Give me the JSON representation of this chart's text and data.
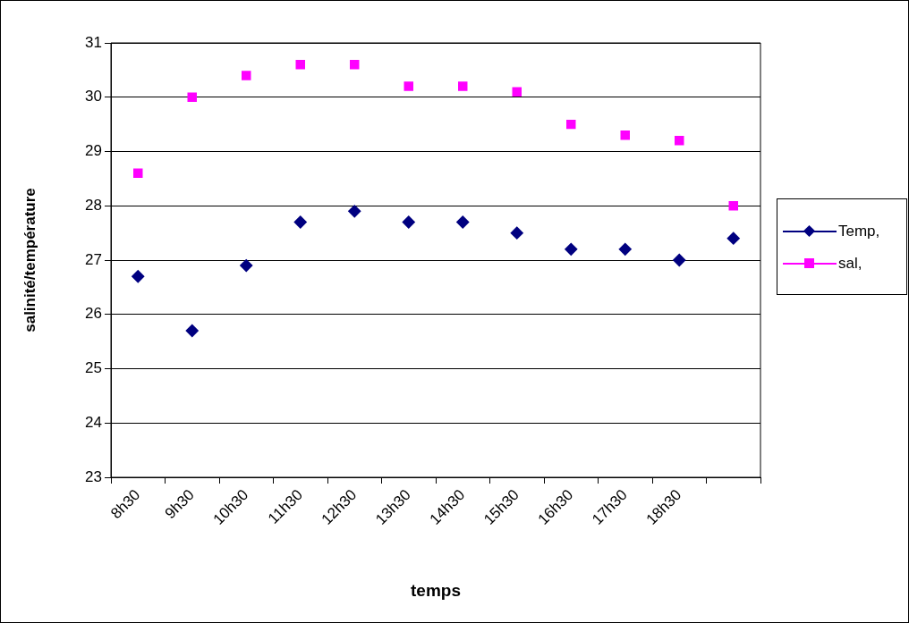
{
  "chart_data": {
    "type": "scatter",
    "xlabel": "temps",
    "ylabel": "salinité/température",
    "categories": [
      "8h30",
      "9h30",
      "10h30",
      "11h30",
      "12h30",
      "13h30",
      "14h30",
      "15h30",
      "16h30",
      "17h30",
      "18h30",
      null
    ],
    "series": [
      {
        "name": "Temp,",
        "color": "#000080",
        "marker": "diamond",
        "values": [
          26.7,
          25.7,
          26.9,
          27.7,
          27.9,
          27.7,
          27.7,
          27.5,
          27.2,
          27.2,
          27.0,
          27.4
        ]
      },
      {
        "name": "sal,",
        "color": "#ff00ff",
        "marker": "square",
        "values": [
          28.6,
          30.0,
          30.4,
          30.6,
          30.6,
          30.2,
          30.2,
          30.1,
          29.5,
          29.3,
          29.2,
          28.0
        ]
      }
    ],
    "ylim": [
      23,
      31
    ],
    "yticks": [
      23,
      24,
      25,
      26,
      27,
      28,
      29,
      30,
      31
    ],
    "grid": "y",
    "legend": "right"
  }
}
